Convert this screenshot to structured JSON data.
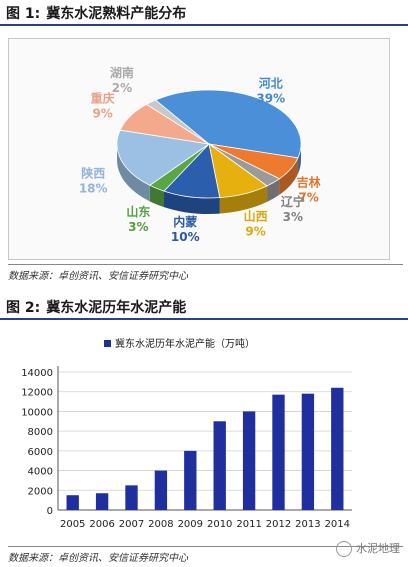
{
  "figure1": {
    "label": "图 1:",
    "title": "冀东水泥熟料产能分布",
    "source": "数据来源：卓创资讯、安信证券研究中心",
    "chart_data": {
      "type": "pie",
      "slices": [
        {
          "name": "河北",
          "value": 39,
          "label": "39%",
          "color": "#4a8fd8"
        },
        {
          "name": "吉林",
          "value": 7,
          "label": "7%",
          "color": "#ee7a30"
        },
        {
          "name": "辽宁",
          "value": 3,
          "label": "3%",
          "color": "#9a9a9a"
        },
        {
          "name": "山西",
          "value": 9,
          "label": "9%",
          "color": "#e6b10f"
        },
        {
          "name": "内蒙",
          "value": 10,
          "label": "10%",
          "color": "#2b5fad"
        },
        {
          "name": "山东",
          "value": 3,
          "label": "3%",
          "color": "#5aa646"
        },
        {
          "name": "陕西",
          "value": 18,
          "label": "18%",
          "color": "#9cbfe4"
        },
        {
          "name": "重庆",
          "value": 9,
          "label": "9%",
          "color": "#f4a98c"
        },
        {
          "name": "湖南",
          "value": 2,
          "label": "2%",
          "color": "#c8c8c8"
        }
      ]
    }
  },
  "figure2": {
    "label": "图 2:",
    "title": "冀东水泥历年水泥产能",
    "source": "数据来源：卓创资讯、安信证券研究中心",
    "chart_data": {
      "type": "bar",
      "legend": "冀东水泥历年水泥产能（万吨）",
      "categories": [
        "2005",
        "2006",
        "2007",
        "2008",
        "2009",
        "2010",
        "2011",
        "2012",
        "2013",
        "2014"
      ],
      "values": [
        1500,
        1700,
        2500,
        4000,
        6000,
        9000,
        10000,
        11700,
        11800,
        12400
      ],
      "yticks": [
        "0",
        "2000",
        "4000",
        "6000",
        "8000",
        "10000",
        "12000",
        "14000"
      ],
      "ylim": [
        0,
        14000
      ],
      "bar_color": "#1f2f9e",
      "grid": true
    }
  },
  "watermark": "水泥地理"
}
